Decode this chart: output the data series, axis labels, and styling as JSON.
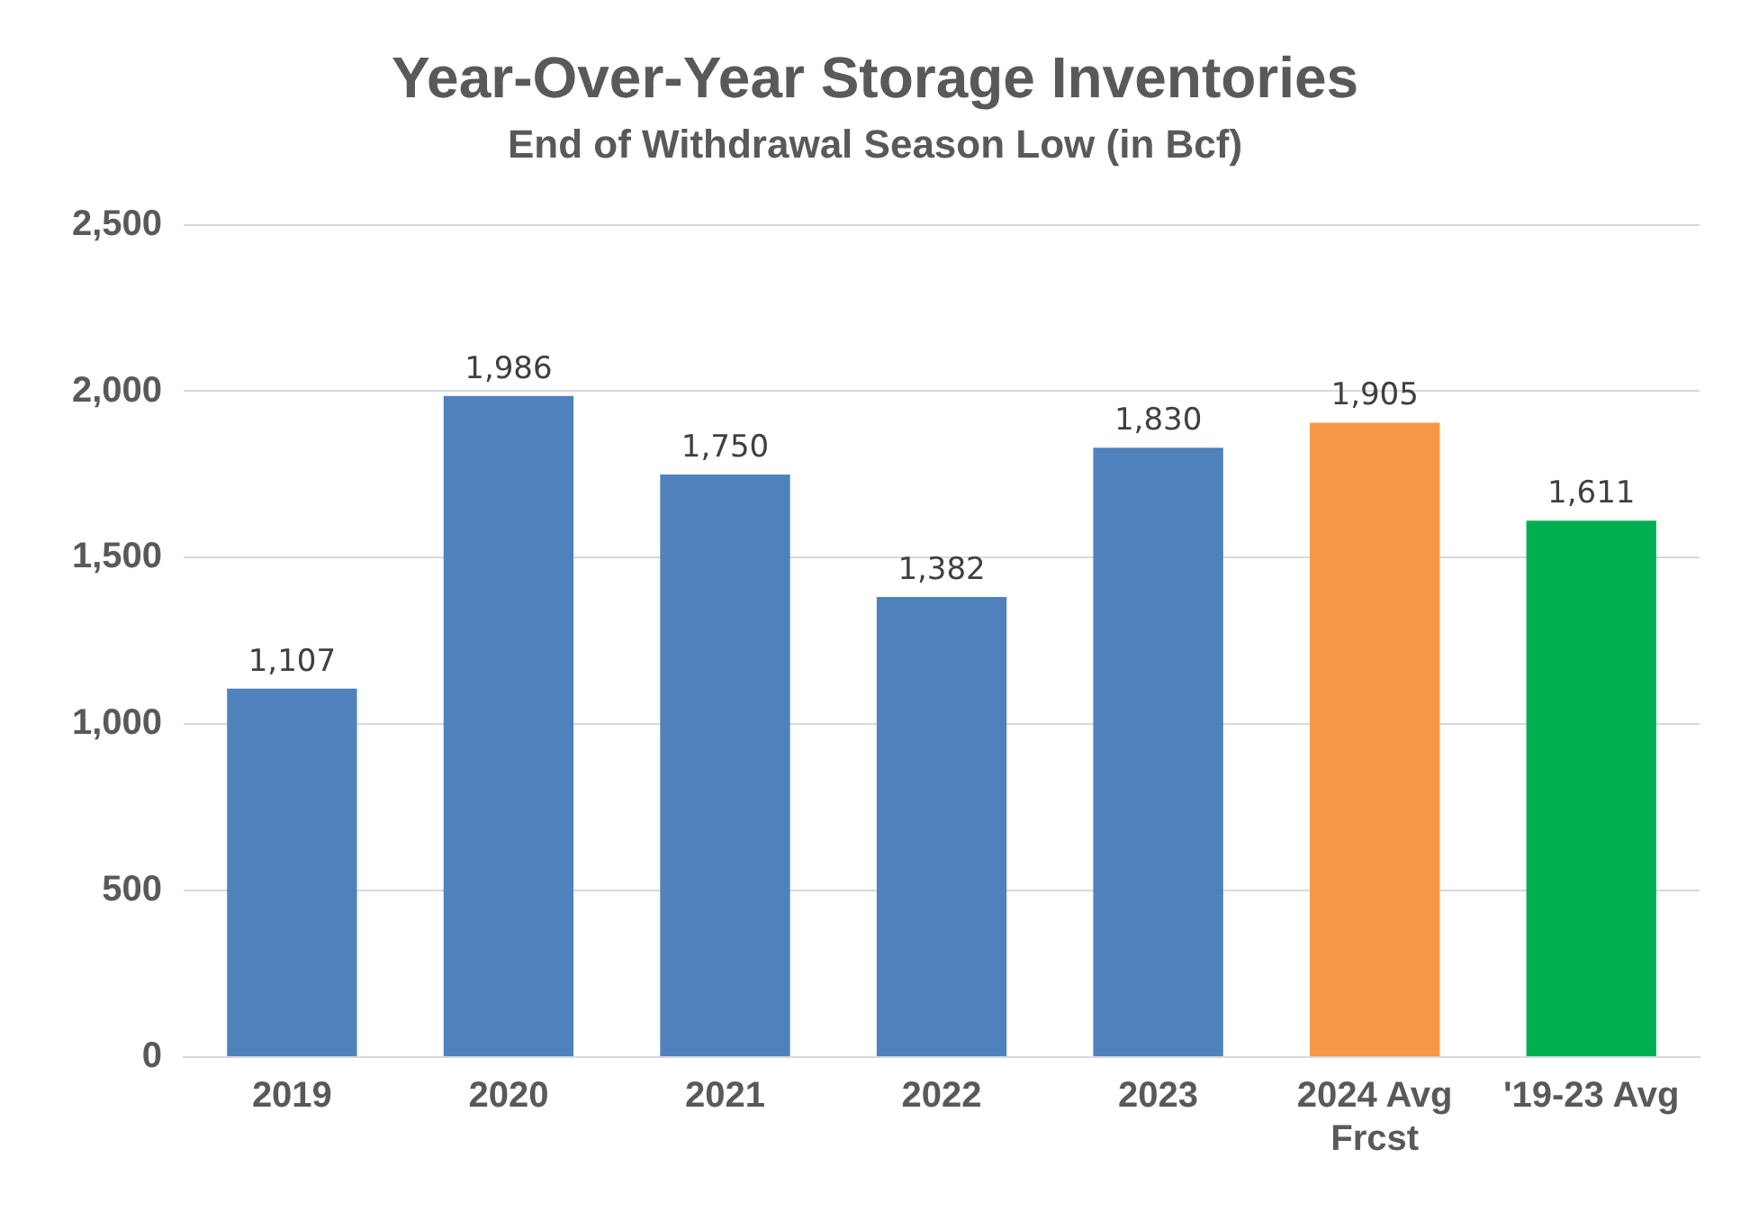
{
  "chart_data": {
    "type": "bar",
    "title": "Year-Over-Year Storage Inventories",
    "subtitle": "End of Withdrawal Season Low (in Bcf)",
    "categories": [
      "2019",
      "2020",
      "2021",
      "2022",
      "2023",
      "2024 Avg Frcst",
      "'19-23 Avg"
    ],
    "values": [
      1107,
      1986,
      1750,
      1382,
      1830,
      1905,
      1611
    ],
    "value_labels": [
      "1,107",
      "1,986",
      "1,750",
      "1,382",
      "1,830",
      "1,905",
      "1,611"
    ],
    "colors": [
      "#4f81bd",
      "#4f81bd",
      "#4f81bd",
      "#4f81bd",
      "#4f81bd",
      "#f79646",
      "#00b050"
    ],
    "ylim": [
      0,
      2500
    ],
    "yticks": [
      0,
      500,
      {
        "value": 1000,
        "label": "1,000"
      },
      {
        "value": 1500,
        "label": "1,500"
      },
      {
        "value": 2000,
        "label": "2,000"
      },
      {
        "value": 2500,
        "label": "2,500"
      }
    ],
    "grid": "y",
    "legend": false
  }
}
